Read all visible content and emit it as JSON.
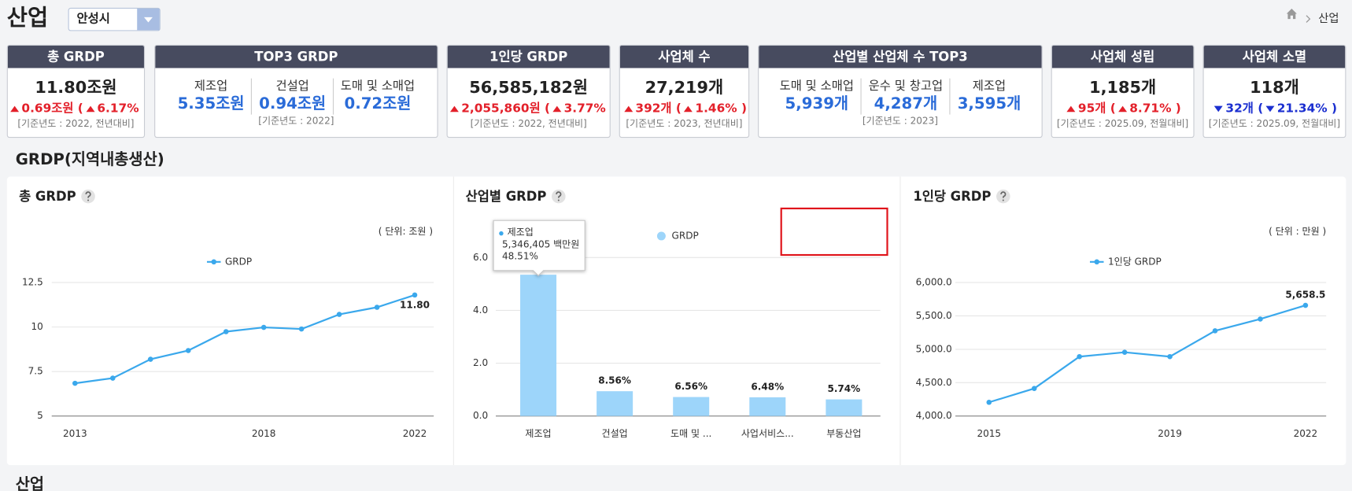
{
  "header": {
    "title": "산업",
    "region": "안성시",
    "breadcrumb": "산업"
  },
  "kpi_cards": [
    {
      "title": "총 GRDP",
      "value": "11.80조원",
      "change": "0.69조원 (",
      "change_pct": "6.17% )",
      "direction": "up",
      "note": "[기준년도 : 2022, 전년대비]"
    },
    {
      "title": "TOP3 GRDP",
      "items": [
        {
          "label": "제조업",
          "value": "5.35조원"
        },
        {
          "label": "건설업",
          "value": "0.94조원"
        },
        {
          "label": "도매 및 소매업",
          "value": "0.72조원"
        }
      ],
      "note": "[기준년도 : 2022]"
    },
    {
      "title": "1인당 GRDP",
      "value": "56,585,182원",
      "change": "2,055,860원 (",
      "change_pct": "3.77% )",
      "direction": "up",
      "note": "[기준년도 : 2022, 전년대비]"
    },
    {
      "title": "사업체 수",
      "value": "27,219개",
      "change": "392개 (",
      "change_pct": "1.46% )",
      "direction": "up",
      "note": "[기준년도 : 2023, 전년대비]"
    },
    {
      "title": "산업별 산업체 수 TOP3",
      "items": [
        {
          "label": "도매 및 소매업",
          "value": "5,939개"
        },
        {
          "label": "운수 및 창고업",
          "value": "4,287개"
        },
        {
          "label": "제조업",
          "value": "3,595개"
        }
      ],
      "note": "[기준년도 : 2023]"
    },
    {
      "title": "사업체 성립",
      "value": "1,185개",
      "change": "95개 (",
      "change_pct": "8.71% )",
      "direction": "up",
      "note": "[기준년도 : 2025.09, 전월대비]"
    },
    {
      "title": "사업체 소멸",
      "value": "118개",
      "change": "32개 (",
      "change_pct": "21.34% )",
      "direction": "down",
      "note": "[기준년도 : 2025.09, 전월대비]"
    }
  ],
  "section_title": "GRDP(지역내총생산)",
  "next_section_title": "산업",
  "chart_data": [
    {
      "type": "line",
      "title": "총 GRDP",
      "unit": "( 단위: 조원 )",
      "x": [
        2013,
        2014,
        2015,
        2016,
        2017,
        2018,
        2019,
        2020,
        2021,
        2022
      ],
      "xlim": [
        2013,
        2022
      ],
      "xticks": [
        2013,
        2018,
        2022
      ],
      "ylim": [
        5,
        12.5
      ],
      "yticks": [
        5,
        7.5,
        10,
        12.5
      ],
      "grid": true,
      "series": [
        {
          "name": "GRDP",
          "color": "#3aa8ec",
          "values": [
            6.84,
            7.13,
            8.19,
            8.68,
            9.74,
            9.98,
            9.89,
            10.71,
            11.11,
            11.8
          ],
          "value_labels": [
            null,
            null,
            null,
            null,
            null,
            null,
            null,
            null,
            null,
            "11.80"
          ]
        }
      ]
    },
    {
      "type": "bar",
      "title": "산업별 GRDP",
      "categories": [
        "제조업",
        "건설업",
        "도매 및 ...",
        "사업서비스...",
        "부동산업"
      ],
      "ylim": [
        0,
        6
      ],
      "yticks": [
        {
          "value": 0,
          "label": "0.0"
        },
        {
          "value": 2,
          "label": "2.0"
        },
        {
          "value": 4,
          "label": "4.0"
        },
        {
          "value": 6,
          "label": "6.0"
        }
      ],
      "grid": true,
      "series": [
        {
          "name": "GRDP",
          "color": "#9dd5fa",
          "values": [
            5.35,
            0.94,
            0.72,
            0.71,
            0.63
          ],
          "share_labels": [
            null,
            "8.56%",
            "6.56%",
            "6.48%",
            "5.74%"
          ]
        }
      ],
      "tooltip": {
        "title": "제조업",
        "value": "5,346,405 백만원",
        "share": "48.51%"
      }
    },
    {
      "type": "line",
      "title": "1인당 GRDP",
      "unit": "( 단위 : 만원 )",
      "x": [
        2015,
        2016,
        2017,
        2018,
        2019,
        2020,
        2021,
        2022
      ],
      "xlim": [
        2015,
        2022
      ],
      "xticks": [
        2015,
        2019,
        2022
      ],
      "ylim": [
        4000,
        6000
      ],
      "yticks": [
        {
          "value": 4000,
          "label": "4,000.0"
        },
        {
          "value": 4500,
          "label": "4,500.0"
        },
        {
          "value": 5000,
          "label": "5,000.0"
        },
        {
          "value": 5500,
          "label": "5,500.0"
        },
        {
          "value": 6000,
          "label": "6,000.0"
        }
      ],
      "grid": true,
      "series": [
        {
          "name": "1인당 GRDP",
          "color": "#3aa8ec",
          "values": [
            4206,
            4413,
            4890,
            4955,
            4890,
            5277,
            5452.9,
            5658.5
          ],
          "value_labels": [
            null,
            null,
            null,
            null,
            null,
            null,
            null,
            "5,658.5"
          ]
        }
      ]
    }
  ]
}
